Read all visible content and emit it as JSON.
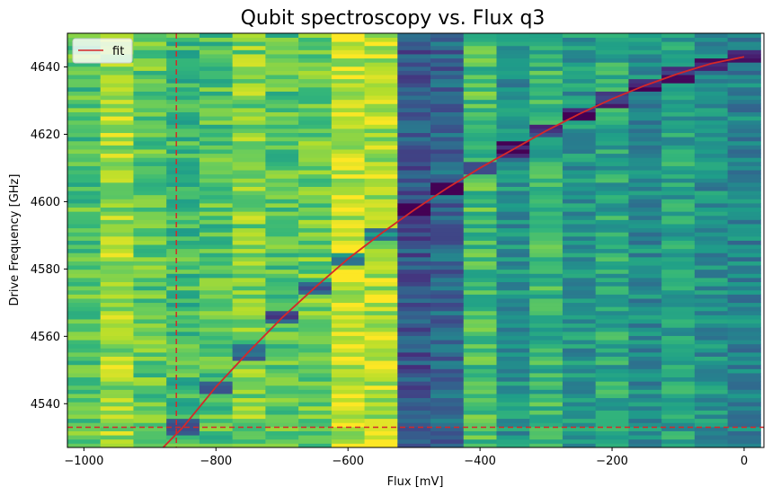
{
  "chart_data": {
    "type": "heatmap",
    "title": "Qubit spectroscopy vs. Flux q3",
    "xlabel": "Flux [mV]",
    "ylabel": "Drive Frequency [GHz]",
    "xlim": [
      -1025,
      30
    ],
    "ylim": [
      4527,
      4650
    ],
    "xticks": [
      -1000,
      -800,
      -600,
      -400,
      -200,
      0
    ],
    "xtick_labels": [
      "−1000",
      "−800",
      "−600",
      "−400",
      "−200",
      "0"
    ],
    "yticks": [
      4540,
      4560,
      4580,
      4600,
      4620,
      4640
    ],
    "ytick_labels": [
      "4540",
      "4560",
      "4580",
      "4600",
      "4620",
      "4640"
    ],
    "colormap": "viridis",
    "heatmap": {
      "flux_columns": [
        -1000,
        -950,
        -900,
        -850,
        -800,
        -750,
        -700,
        -650,
        -600,
        -550,
        -500,
        -450,
        -400,
        -350,
        -300,
        -250,
        -200,
        -150,
        -100,
        -50,
        0
      ],
      "column_level": [
        0.72,
        0.85,
        0.74,
        0.68,
        0.72,
        0.8,
        0.72,
        0.78,
        0.92,
        0.88,
        0.27,
        0.33,
        0.7,
        0.5,
        0.65,
        0.52,
        0.6,
        0.48,
        0.58,
        0.5,
        0.45
      ],
      "freq_start": 4527,
      "freq_stop": 4650,
      "freq_rows": 100,
      "dip_follows_fit": true
    },
    "series": [
      {
        "name": "fit",
        "color": "#d62728",
        "style": "solid",
        "x": [
          -880,
          -850,
          -800,
          -750,
          -700,
          -650,
          -600,
          -550,
          -500,
          -450,
          -400,
          -350,
          -300,
          -250,
          -200,
          -150,
          -100,
          -50,
          0
        ],
        "y": [
          4527,
          4533,
          4545,
          4555.5,
          4565.5,
          4574.5,
          4583,
          4590.5,
          4597.5,
          4604,
          4610,
          4615.5,
          4621,
          4626,
          4630.5,
          4634.5,
          4638,
          4641,
          4643
        ]
      }
    ],
    "reference_lines": [
      {
        "orientation": "vertical",
        "value": -860,
        "color": "#d62728",
        "style": "dashed"
      },
      {
        "orientation": "horizontal",
        "value": 4533,
        "color": "#d62728",
        "style": "dashed"
      }
    ],
    "legend": {
      "position": "top-left",
      "entries": [
        "fit"
      ]
    }
  }
}
